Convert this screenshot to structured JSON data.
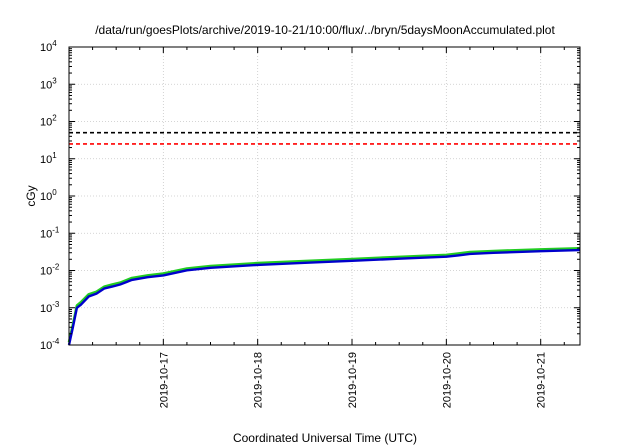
{
  "chart_data": {
    "type": "line",
    "title": "/data/run/goesPlots/archive/2019-10-21/10:00/flux/../bryn/5daysMoonAccumulated.plot",
    "xlabel": "Coordinated Universal Time (UTC)",
    "ylabel": "cGy",
    "xlim": [
      "2019-10-16 00:00",
      "2019-10-21 10:00"
    ],
    "ylim": [
      0.0001,
      10000
    ],
    "yscale": "log",
    "grid": true,
    "legend": "none",
    "x_ticks": [
      "2019-10-17",
      "2019-10-18",
      "2019-10-19",
      "2019-10-20",
      "2019-10-21"
    ],
    "y_ticks": [
      {
        "base": "10",
        "exp": "4",
        "value": 10000
      },
      {
        "base": "10",
        "exp": "3",
        "value": 1000
      },
      {
        "base": "10",
        "exp": "2",
        "value": 100
      },
      {
        "base": "10",
        "exp": "1",
        "value": 10
      },
      {
        "base": "10",
        "exp": "0",
        "value": 1
      },
      {
        "base": "10",
        "exp": "-1",
        "value": 0.1
      },
      {
        "base": "10",
        "exp": "-2",
        "value": 0.01
      },
      {
        "base": "10",
        "exp": "-3",
        "value": 0.001
      },
      {
        "base": "10",
        "exp": "-4",
        "value": 0.0001
      }
    ],
    "thresholds": [
      {
        "value": 50,
        "color": "#000000"
      },
      {
        "value": 25,
        "color": "#ff0000"
      }
    ],
    "series": [
      {
        "color": "#22cc22",
        "x": [
          "2019-10-16 00:00",
          "2019-10-16 01:00",
          "2019-10-16 02:00",
          "2019-10-16 03:00",
          "2019-10-16 05:00",
          "2019-10-16 07:00",
          "2019-10-16 09:00",
          "2019-10-16 11:00",
          "2019-10-16 13:00",
          "2019-10-16 16:00",
          "2019-10-16 20:00",
          "2019-10-17 00:00",
          "2019-10-17 06:00",
          "2019-10-17 12:00",
          "2019-10-18 00:00",
          "2019-10-18 12:00",
          "2019-10-19 00:00",
          "2019-10-19 12:00",
          "2019-10-20 00:00",
          "2019-10-20 03:00",
          "2019-10-20 06:00",
          "2019-10-20 12:00",
          "2019-10-21 00:00",
          "2019-10-21 10:00"
        ],
        "y": [
          0.00012,
          0.00035,
          0.00115,
          0.0014,
          0.0023,
          0.0027,
          0.0037,
          0.0042,
          0.0047,
          0.0063,
          0.0074,
          0.0083,
          0.0113,
          0.0132,
          0.0158,
          0.018,
          0.0204,
          0.0232,
          0.0262,
          0.0285,
          0.0312,
          0.0333,
          0.0368,
          0.0395
        ]
      },
      {
        "color": "#0000cc",
        "x": [
          "2019-10-16 00:00",
          "2019-10-16 01:00",
          "2019-10-16 02:00",
          "2019-10-16 03:00",
          "2019-10-16 05:00",
          "2019-10-16 07:00",
          "2019-10-16 09:00",
          "2019-10-16 11:00",
          "2019-10-16 13:00",
          "2019-10-16 16:00",
          "2019-10-16 20:00",
          "2019-10-17 00:00",
          "2019-10-17 06:00",
          "2019-10-17 12:00",
          "2019-10-18 00:00",
          "2019-10-18 12:00",
          "2019-10-19 00:00",
          "2019-10-19 12:00",
          "2019-10-20 00:00",
          "2019-10-20 03:00",
          "2019-10-20 06:00",
          "2019-10-20 12:00",
          "2019-10-21 00:00",
          "2019-10-21 10:00"
        ],
        "y": [
          0.0001,
          0.0003,
          0.001,
          0.0012,
          0.002,
          0.0024,
          0.0033,
          0.0037,
          0.0042,
          0.0056,
          0.0066,
          0.0074,
          0.0101,
          0.0118,
          0.0141,
          0.0161,
          0.0182,
          0.0207,
          0.0234,
          0.0255,
          0.0279,
          0.0298,
          0.0329,
          0.0352
        ]
      }
    ]
  }
}
